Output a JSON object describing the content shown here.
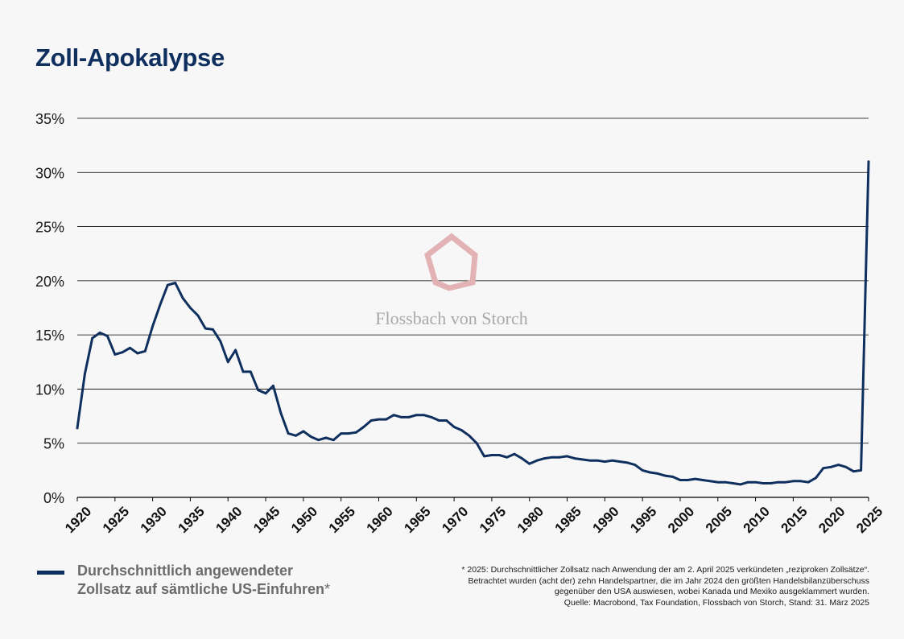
{
  "title": "Zoll-Apokalypse",
  "watermark": {
    "text": "Flossbach von Storch",
    "logo_color": "#e3b2b4",
    "text_color": "#a9a9a9"
  },
  "legend": {
    "line1": "Durchschnittlich angewendeter",
    "line2": "Zollsatz auf sämtliche US-Einfuhren",
    "marker": "*"
  },
  "footnote": {
    "line1": "* 2025: Durchschnittlicher Zollsatz nach Anwendung der am 2. April 2025 verkündeten „reziproken Zollsätze“.",
    "line2": "Betrachtet wurden (acht der) zehn Handelspartner, die im Jahr 2024 den größten Handelsbilanzüberschuss",
    "line3": "gegenüber den USA auswiesen, wobei Kanada und Mexiko ausgeklammert wurden.",
    "line4": "Quelle: Macrobond, Tax Foundation, Flossbach von Storch, Stand: 31. März 2025"
  },
  "colors": {
    "line": "#0f2f5e",
    "title": "#0f2f5e",
    "grid": "#000000"
  },
  "chart_data": {
    "type": "line",
    "xlim": [
      1920,
      2025
    ],
    "ylim": [
      0,
      35
    ],
    "y_ticks": [
      0,
      5,
      10,
      15,
      20,
      25,
      30,
      35
    ],
    "y_tick_labels": [
      "0%",
      "5%",
      "10%",
      "15%",
      "20%",
      "25%",
      "30%",
      "35%"
    ],
    "x_ticks": [
      1920,
      1925,
      1930,
      1935,
      1940,
      1945,
      1950,
      1955,
      1960,
      1965,
      1970,
      1975,
      1980,
      1985,
      1990,
      1995,
      2000,
      2005,
      2010,
      2015,
      2020,
      2025
    ],
    "x_tick_labels": [
      "1920",
      "1925",
      "1930",
      "1935",
      "1940",
      "1945",
      "1950",
      "1955",
      "1960",
      "1965",
      "1970",
      "1975",
      "1980",
      "1985",
      "1990",
      "1995",
      "2000",
      "2005",
      "2010",
      "2015",
      "2020",
      "2025"
    ],
    "grid": "horizontal",
    "series": [
      {
        "name": "Durchschnittlich angewendeter Zollsatz auf sämtliche US-Einfuhren",
        "x": [
          1920,
          1921,
          1922,
          1923,
          1924,
          1925,
          1926,
          1927,
          1928,
          1929,
          1930,
          1931,
          1932,
          1933,
          1934,
          1935,
          1936,
          1937,
          1938,
          1939,
          1940,
          1941,
          1942,
          1943,
          1944,
          1945,
          1946,
          1947,
          1948,
          1949,
          1950,
          1951,
          1952,
          1953,
          1954,
          1955,
          1956,
          1957,
          1958,
          1959,
          1960,
          1961,
          1962,
          1963,
          1964,
          1965,
          1966,
          1967,
          1968,
          1969,
          1970,
          1971,
          1972,
          1973,
          1974,
          1975,
          1976,
          1977,
          1978,
          1979,
          1980,
          1981,
          1982,
          1983,
          1984,
          1985,
          1986,
          1987,
          1988,
          1989,
          1990,
          1991,
          1992,
          1993,
          1994,
          1995,
          1996,
          1997,
          1998,
          1999,
          2000,
          2001,
          2002,
          2003,
          2004,
          2005,
          2006,
          2007,
          2008,
          2009,
          2010,
          2011,
          2012,
          2013,
          2014,
          2015,
          2016,
          2017,
          2018,
          2019,
          2020,
          2021,
          2022,
          2023,
          2024,
          2025
        ],
        "values": [
          6.4,
          11.4,
          14.7,
          15.2,
          14.9,
          13.2,
          13.4,
          13.8,
          13.3,
          13.5,
          15.8,
          17.8,
          19.6,
          19.8,
          18.4,
          17.5,
          16.8,
          15.6,
          15.5,
          14.4,
          12.5,
          13.6,
          11.6,
          11.6,
          9.9,
          9.6,
          10.3,
          7.8,
          5.9,
          5.7,
          6.1,
          5.6,
          5.3,
          5.5,
          5.3,
          5.9,
          5.9,
          6.0,
          6.5,
          7.1,
          7.2,
          7.2,
          7.6,
          7.4,
          7.4,
          7.6,
          7.6,
          7.4,
          7.1,
          7.1,
          6.5,
          6.2,
          5.7,
          5.0,
          3.8,
          3.9,
          3.9,
          3.7,
          4.0,
          3.6,
          3.1,
          3.4,
          3.6,
          3.7,
          3.7,
          3.8,
          3.6,
          3.5,
          3.4,
          3.4,
          3.3,
          3.4,
          3.3,
          3.2,
          3.0,
          2.5,
          2.3,
          2.2,
          2.0,
          1.9,
          1.6,
          1.6,
          1.7,
          1.6,
          1.5,
          1.4,
          1.4,
          1.3,
          1.2,
          1.4,
          1.4,
          1.3,
          1.3,
          1.4,
          1.4,
          1.5,
          1.5,
          1.4,
          1.8,
          2.7,
          2.8,
          3.0,
          2.8,
          2.4,
          2.5,
          31.0
        ]
      }
    ]
  }
}
